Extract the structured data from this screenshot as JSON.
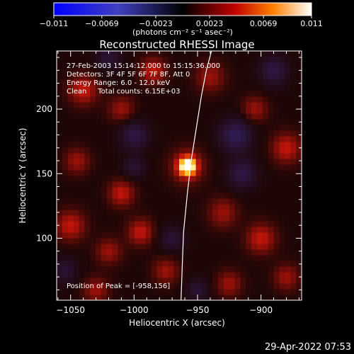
{
  "chart_data": {
    "type": "heatmap",
    "title": "Reconstructed RHESSI Image",
    "xlabel": "Heliocentric X (arcsec)",
    "ylabel": "Heliocentric Y (arcsec)",
    "xlim": [
      -1061,
      -868
    ],
    "ylim": [
      52,
      245
    ],
    "x_ticks": [
      {
        "value": -1050,
        "label": "−1050"
      },
      {
        "value": -1000,
        "label": "−1000"
      },
      {
        "value": -950,
        "label": "−950"
      },
      {
        "value": -900,
        "label": "−900"
      }
    ],
    "y_ticks": [
      {
        "value": 100,
        "label": "100"
      },
      {
        "value": 150,
        "label": "150"
      },
      {
        "value": 200,
        "label": "200"
      }
    ],
    "colorbar": {
      "range": [
        -0.011,
        0.011
      ],
      "ticks": [
        {
          "value": -0.011,
          "label": "−0.011"
        },
        {
          "value": -0.0069,
          "label": "−0.0069"
        },
        {
          "value": -0.0023,
          "label": "−0.0023"
        },
        {
          "value": 0.0023,
          "label": "0.0023"
        },
        {
          "value": 0.0069,
          "label": "0.0069"
        },
        {
          "value": 0.011,
          "label": "0.011"
        }
      ],
      "units_label": "(photons cm⁻² s⁻¹ asec⁻²)"
    },
    "annotations": [
      "27-Feb-2003 15:14:12.000 to 15:15:36.000",
      "Detectors: 3F 4F 5F 6F 7F 8F, Att 0",
      "Energy Range: 6.0 - 12.0 keV",
      "Clean     Total counts: 6.15E+03"
    ],
    "peak_label": "Position of Peak = [-958,156]",
    "peak": {
      "x": -958,
      "y": 156
    },
    "limb_curve": [
      {
        "x": -963,
        "y": 52
      },
      {
        "x": -962,
        "y": 80
      },
      {
        "x": -961,
        "y": 105
      },
      {
        "x": -958,
        "y": 135
      },
      {
        "x": -955,
        "y": 160
      },
      {
        "x": -951,
        "y": 185
      },
      {
        "x": -947,
        "y": 210
      },
      {
        "x": -943,
        "y": 230
      },
      {
        "x": -939,
        "y": 245
      }
    ],
    "blobs": [
      {
        "x": -958,
        "y": 156,
        "v": 0.011,
        "s": 4.5
      },
      {
        "x": -958,
        "y": 156,
        "v": 0.004,
        "s": 9
      },
      {
        "x": -1040,
        "y": 215,
        "v": 0.004,
        "s": 8
      },
      {
        "x": -1010,
        "y": 200,
        "v": 0.003,
        "s": 7
      },
      {
        "x": -985,
        "y": 230,
        "v": 0.004,
        "s": 7
      },
      {
        "x": -940,
        "y": 225,
        "v": 0.003,
        "s": 8
      },
      {
        "x": -905,
        "y": 200,
        "v": 0.003,
        "s": 7
      },
      {
        "x": -880,
        "y": 170,
        "v": 0.004,
        "s": 8
      },
      {
        "x": -1045,
        "y": 160,
        "v": 0.003,
        "s": 7
      },
      {
        "x": -1010,
        "y": 135,
        "v": 0.004,
        "s": 7
      },
      {
        "x": -1050,
        "y": 110,
        "v": 0.004,
        "s": 8
      },
      {
        "x": -1020,
        "y": 90,
        "v": 0.003,
        "s": 7
      },
      {
        "x": -995,
        "y": 105,
        "v": 0.004,
        "s": 7
      },
      {
        "x": -975,
        "y": 75,
        "v": 0.003,
        "s": 7
      },
      {
        "x": -930,
        "y": 120,
        "v": 0.003,
        "s": 8
      },
      {
        "x": -900,
        "y": 100,
        "v": 0.004,
        "s": 8
      },
      {
        "x": -880,
        "y": 70,
        "v": 0.003,
        "s": 7
      },
      {
        "x": -925,
        "y": 65,
        "v": 0.003,
        "s": 7
      },
      {
        "x": -1030,
        "y": 60,
        "v": 0.003,
        "s": 7
      },
      {
        "x": -1000,
        "y": 180,
        "v": -0.004,
        "s": 8
      },
      {
        "x": -920,
        "y": 180,
        "v": -0.005,
        "s": 9
      },
      {
        "x": -915,
        "y": 150,
        "v": -0.004,
        "s": 8
      },
      {
        "x": -1020,
        "y": 240,
        "v": -0.003,
        "s": 7
      },
      {
        "x": -1000,
        "y": 155,
        "v": -0.003,
        "s": 6
      },
      {
        "x": -970,
        "y": 100,
        "v": -0.003,
        "s": 7
      },
      {
        "x": -890,
        "y": 230,
        "v": -0.004,
        "s": 8
      },
      {
        "x": -1055,
        "y": 75,
        "v": -0.003,
        "s": 7
      },
      {
        "x": -950,
        "y": 60,
        "v": -0.003,
        "s": 6
      }
    ]
  },
  "footer_timestamp": "29-Apr-2022 07:53"
}
